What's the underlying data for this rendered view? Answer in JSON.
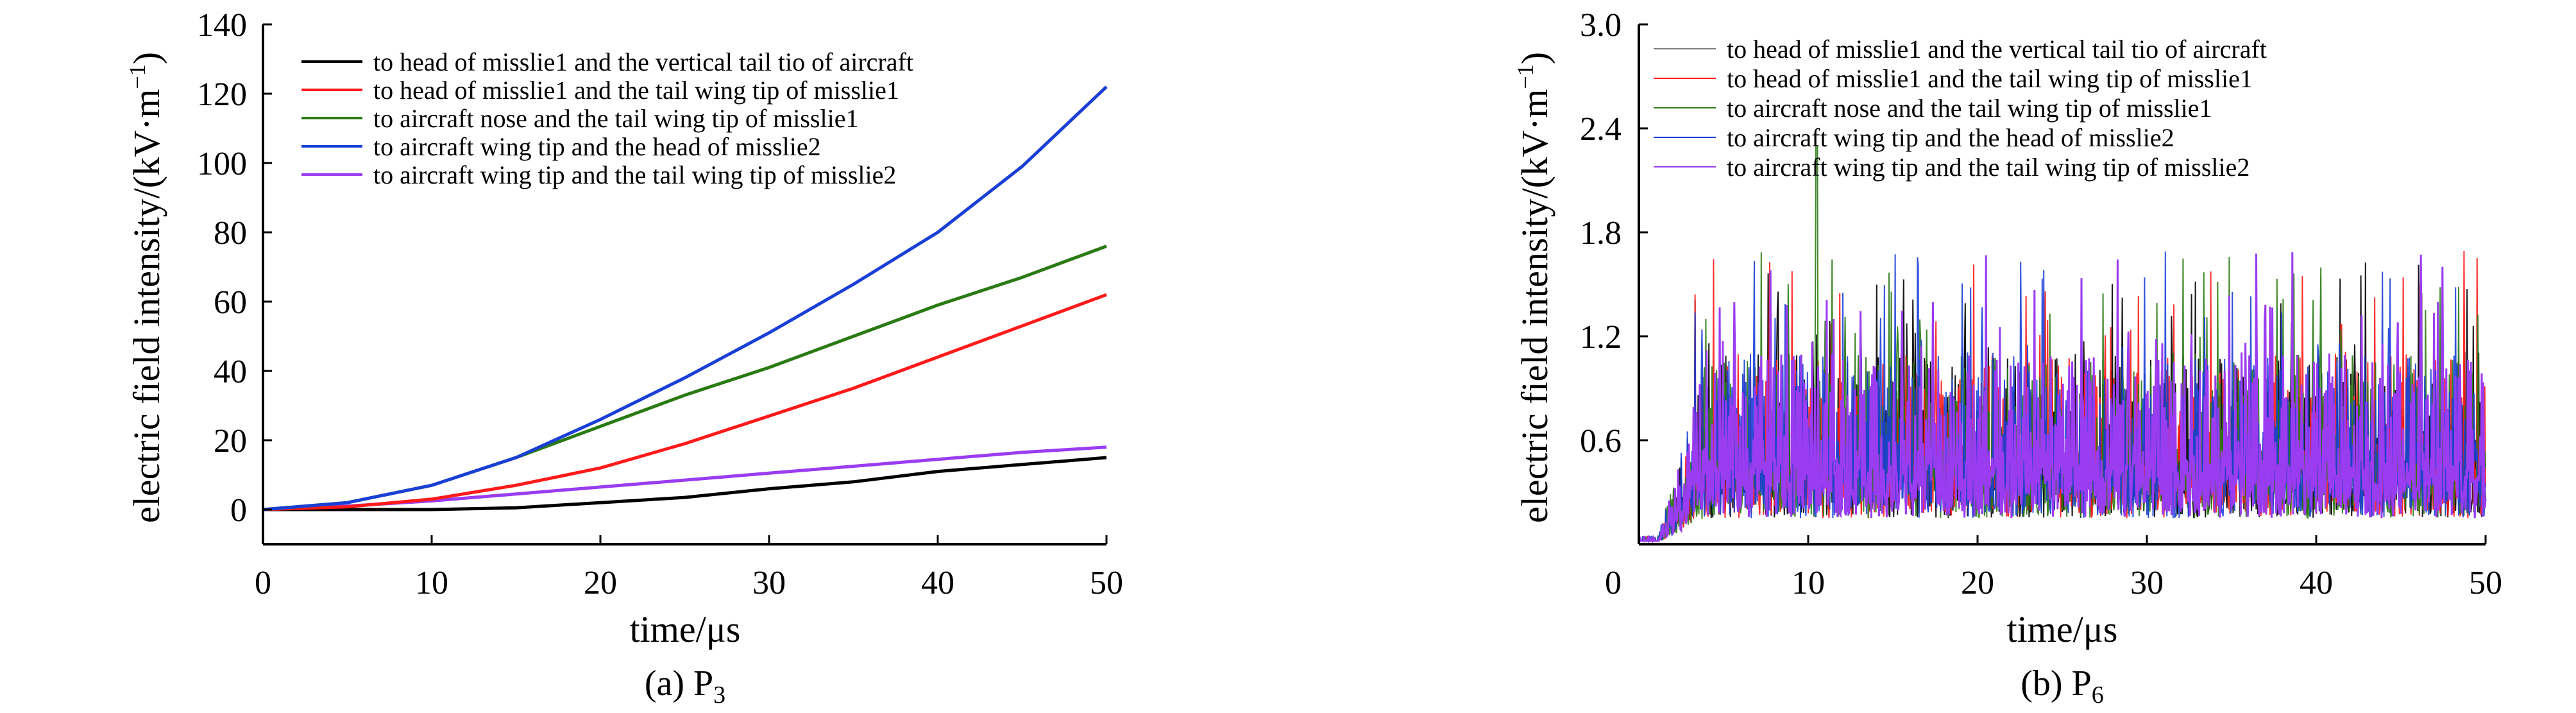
{
  "colors": {
    "black": "#000000",
    "red": "#ff1a1a",
    "green": "#2a7a14",
    "blue": "#1a3fd6",
    "purple": "#9a3cf0"
  },
  "chart_data": [
    {
      "type": "line",
      "panel": "a",
      "caption": "(a) P",
      "caption_sub": "3",
      "xlabel": "time/μs",
      "ylabel": "electric field intensity/(kV·m",
      "ylabel_sup": "−1",
      "ylabel_end": ")",
      "xlim": [
        0,
        50
      ],
      "ylim": [
        -10,
        140
      ],
      "xticks": [
        0,
        10,
        20,
        30,
        40,
        50
      ],
      "yticks": [
        0,
        20,
        40,
        60,
        80,
        100,
        120,
        140
      ],
      "xtick_labels": [
        "0",
        "10",
        "20",
        "30",
        "40",
        "50"
      ],
      "ytick_labels": [
        "0",
        "20",
        "40",
        "60",
        "80",
        "100",
        "120",
        "140"
      ],
      "legend_position": "top-left",
      "grid": false,
      "x": [
        0,
        5,
        10,
        15,
        20,
        25,
        30,
        35,
        40,
        45,
        50
      ],
      "series": [
        {
          "name": "to head of misslie1 and the vertical tail tio of aircraft",
          "color": "#000000",
          "values": [
            0,
            0,
            0,
            0.5,
            2,
            3.5,
            6,
            8,
            11,
            13,
            15
          ]
        },
        {
          "name": "to head of misslie1 and the tail wing tip of misslie1",
          "color": "#ff1a1a",
          "values": [
            0,
            0.8,
            3,
            7,
            12,
            19,
            27,
            35,
            44,
            53,
            62
          ]
        },
        {
          "name": "to aircraft nose and the tail wing tip of misslie1",
          "color": "#2a7a14",
          "values": [
            0,
            2,
            7,
            15,
            24,
            33,
            41,
            50,
            59,
            67,
            76
          ]
        },
        {
          "name": "to aircraft wing tip and the head of misslie2",
          "color": "#1a3fd6",
          "values": [
            0,
            2,
            7,
            15,
            26,
            38,
            51,
            65,
            80,
            99,
            122
          ]
        },
        {
          "name": "to aircraft wing tip and the tail wing tip of misslie2",
          "color": "#9a3cf0",
          "values": [
            0,
            1,
            2.5,
            4.5,
            6.5,
            8.5,
            10.5,
            12.5,
            14.5,
            16.5,
            18
          ]
        }
      ]
    },
    {
      "type": "line",
      "panel": "b",
      "caption": "(b) P",
      "caption_sub": "6",
      "xlabel": "time/μs",
      "ylabel": "electric field intensity/(kV·m",
      "ylabel_sup": "−1",
      "ylabel_end": ")",
      "xlim": [
        0,
        50
      ],
      "ylim": [
        0,
        3.0
      ],
      "xticks": [
        0,
        10,
        20,
        30,
        40,
        50
      ],
      "yticks": [
        0.6,
        1.2,
        1.8,
        2.4,
        3.0
      ],
      "xtick_labels": [
        "0",
        "10",
        "20",
        "30",
        "40",
        "50"
      ],
      "ytick_labels": [
        "0.6",
        "1.2",
        "1.8",
        "2.4",
        "3.0"
      ],
      "legend_position": "top-left",
      "grid": false,
      "description_values": {
        "rise_end_time": 4,
        "plateau_low": 0.15,
        "plateau_high": 1.1,
        "peak_max": 2.3
      },
      "series": [
        {
          "name": "to head of misslie1 and the vertical tail tio of aircraft",
          "color": "#000000"
        },
        {
          "name": "to head of misslie1 and the tail wing tip of misslie1",
          "color": "#ff1a1a"
        },
        {
          "name": "to aircraft nose and the tail wing tip of misslie1",
          "color": "#2a7a14"
        },
        {
          "name": "to aircraft wing tip and the head of misslie2",
          "color": "#1a3fd6"
        },
        {
          "name": "to aircraft wing tip and the tail wing tip of misslie2",
          "color": "#9a3cf0"
        }
      ]
    }
  ]
}
